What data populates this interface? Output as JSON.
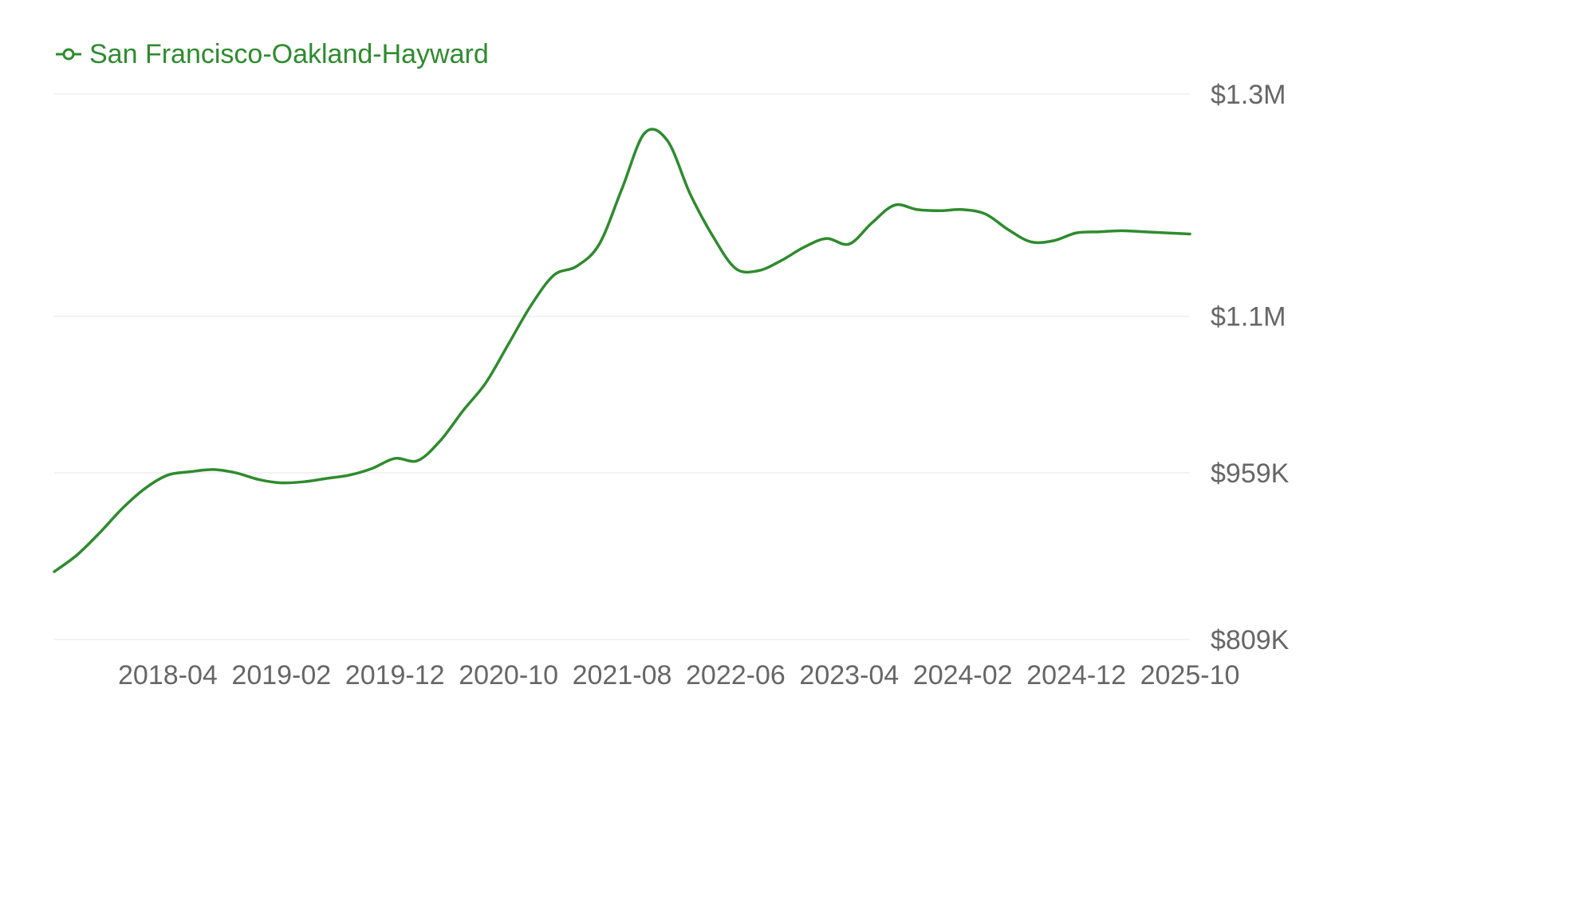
{
  "chart_data": {
    "type": "line",
    "title": "",
    "xlabel": "",
    "ylabel": "",
    "series": [
      {
        "name": "San Francisco-Oakland-Hayward",
        "color": "#2e8b2e",
        "x": [
          "2017-06",
          "2017-08",
          "2017-10",
          "2017-12",
          "2018-02",
          "2018-04",
          "2018-06",
          "2018-08",
          "2018-10",
          "2018-12",
          "2019-02",
          "2019-04",
          "2019-06",
          "2019-08",
          "2019-10",
          "2019-12",
          "2020-02",
          "2020-04",
          "2020-06",
          "2020-08",
          "2020-10",
          "2020-12",
          "2021-02",
          "2021-04",
          "2021-06",
          "2021-08",
          "2021-10",
          "2021-12",
          "2022-02",
          "2022-04",
          "2022-06",
          "2022-08",
          "2022-10",
          "2022-12",
          "2023-02",
          "2023-04",
          "2023-06",
          "2023-08",
          "2023-10",
          "2023-12",
          "2024-02",
          "2024-04",
          "2024-06",
          "2024-08",
          "2024-10",
          "2024-12",
          "2025-02",
          "2025-04",
          "2025-06",
          "2025-08",
          "2025-10"
        ],
        "values": [
          870000,
          885000,
          905000,
          927000,
          945000,
          957000,
          960000,
          962000,
          959000,
          953000,
          950000,
          951000,
          954000,
          957000,
          963000,
          972000,
          970000,
          988000,
          1015000,
          1040000,
          1075000,
          1110000,
          1137000,
          1145000,
          1165000,
          1215000,
          1265000,
          1258000,
          1210000,
          1172000,
          1143000,
          1141000,
          1150000,
          1162000,
          1170000,
          1165000,
          1184000,
          1200000,
          1196000,
          1195000,
          1196000,
          1192000,
          1178000,
          1167000,
          1168000,
          1175000,
          1176000,
          1177000,
          1176000,
          1175000,
          1174000
        ]
      }
    ],
    "x_ticks": [
      "2018-04",
      "2019-02",
      "2019-12",
      "2020-10",
      "2021-08",
      "2022-06",
      "2023-04",
      "2024-02",
      "2024-12",
      "2025-10"
    ],
    "y_ticks": [
      {
        "value": 809000,
        "label": "$809K"
      },
      {
        "value": 959000,
        "label": "$959K"
      },
      {
        "value": 1100000,
        "label": "$1.1M"
      },
      {
        "value": 1300000,
        "label": "$1.3M"
      }
    ],
    "ylim": [
      809000,
      1300000
    ],
    "xlim": [
      "2017-06",
      "2025-10"
    ],
    "y_axis_position": "right",
    "grid": true,
    "legend": "top-left"
  }
}
